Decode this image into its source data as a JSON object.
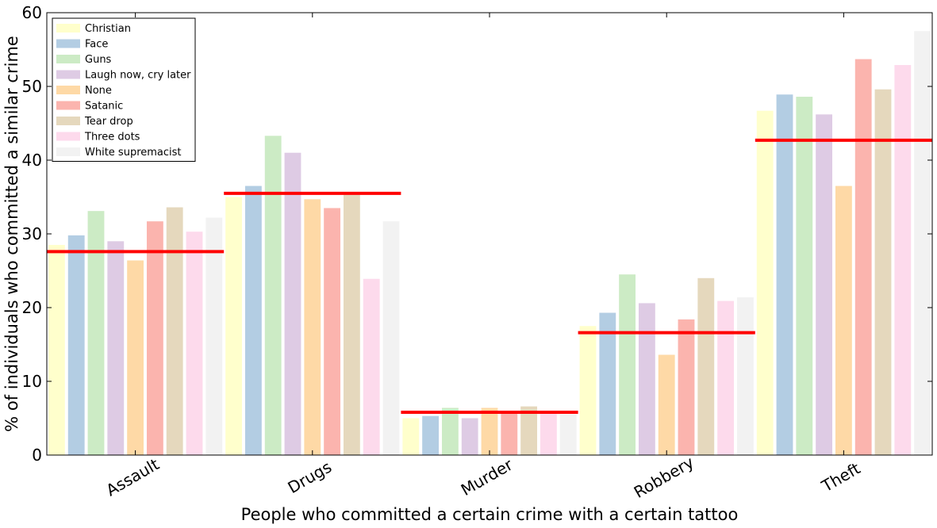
{
  "chart_data": {
    "type": "bar",
    "title": "",
    "xlabel": "People who committed a certain crime with a certain tattoo",
    "ylabel": "% of individuals who committed a similar crime",
    "ylim": [
      0,
      60
    ],
    "yticks": [
      0,
      10,
      20,
      30,
      40,
      50,
      60
    ],
    "grid": false,
    "legend_position": "top-left",
    "categories": [
      "Assault",
      "Drugs",
      "Murder",
      "Robbery",
      "Theft"
    ],
    "series": [
      {
        "name": "Christian",
        "color": "#ffffcc",
        "values": [
          28.5,
          35.0,
          5.0,
          17.5,
          46.7
        ]
      },
      {
        "name": "Face",
        "color": "#b3cde3",
        "values": [
          29.8,
          36.5,
          5.3,
          19.3,
          48.9
        ]
      },
      {
        "name": "Guns",
        "color": "#ccebc5",
        "values": [
          33.1,
          43.3,
          6.4,
          24.5,
          48.6
        ]
      },
      {
        "name": "Laugh now, cry later",
        "color": "#decbe4",
        "values": [
          29.0,
          41.0,
          5.0,
          20.6,
          46.2
        ]
      },
      {
        "name": "None",
        "color": "#fed9a6",
        "values": [
          26.4,
          34.7,
          6.4,
          13.6,
          36.5
        ]
      },
      {
        "name": "Satanic",
        "color": "#fbb4ae",
        "values": [
          31.7,
          33.5,
          6.0,
          18.4,
          53.7
        ]
      },
      {
        "name": "Tear drop",
        "color": "#e5d8bd",
        "values": [
          33.6,
          35.3,
          6.6,
          24.0,
          49.6
        ]
      },
      {
        "name": "Three dots",
        "color": "#fddaec",
        "values": [
          30.3,
          23.9,
          6.0,
          20.9,
          52.9
        ]
      },
      {
        "name": "White supremacist",
        "color": "#f2f2f2",
        "values": [
          32.2,
          31.7,
          5.5,
          21.4,
          57.5
        ]
      }
    ],
    "reference_lines": {
      "color": "#ff0000",
      "values": [
        27.6,
        35.5,
        5.8,
        16.6,
        42.7
      ]
    }
  }
}
